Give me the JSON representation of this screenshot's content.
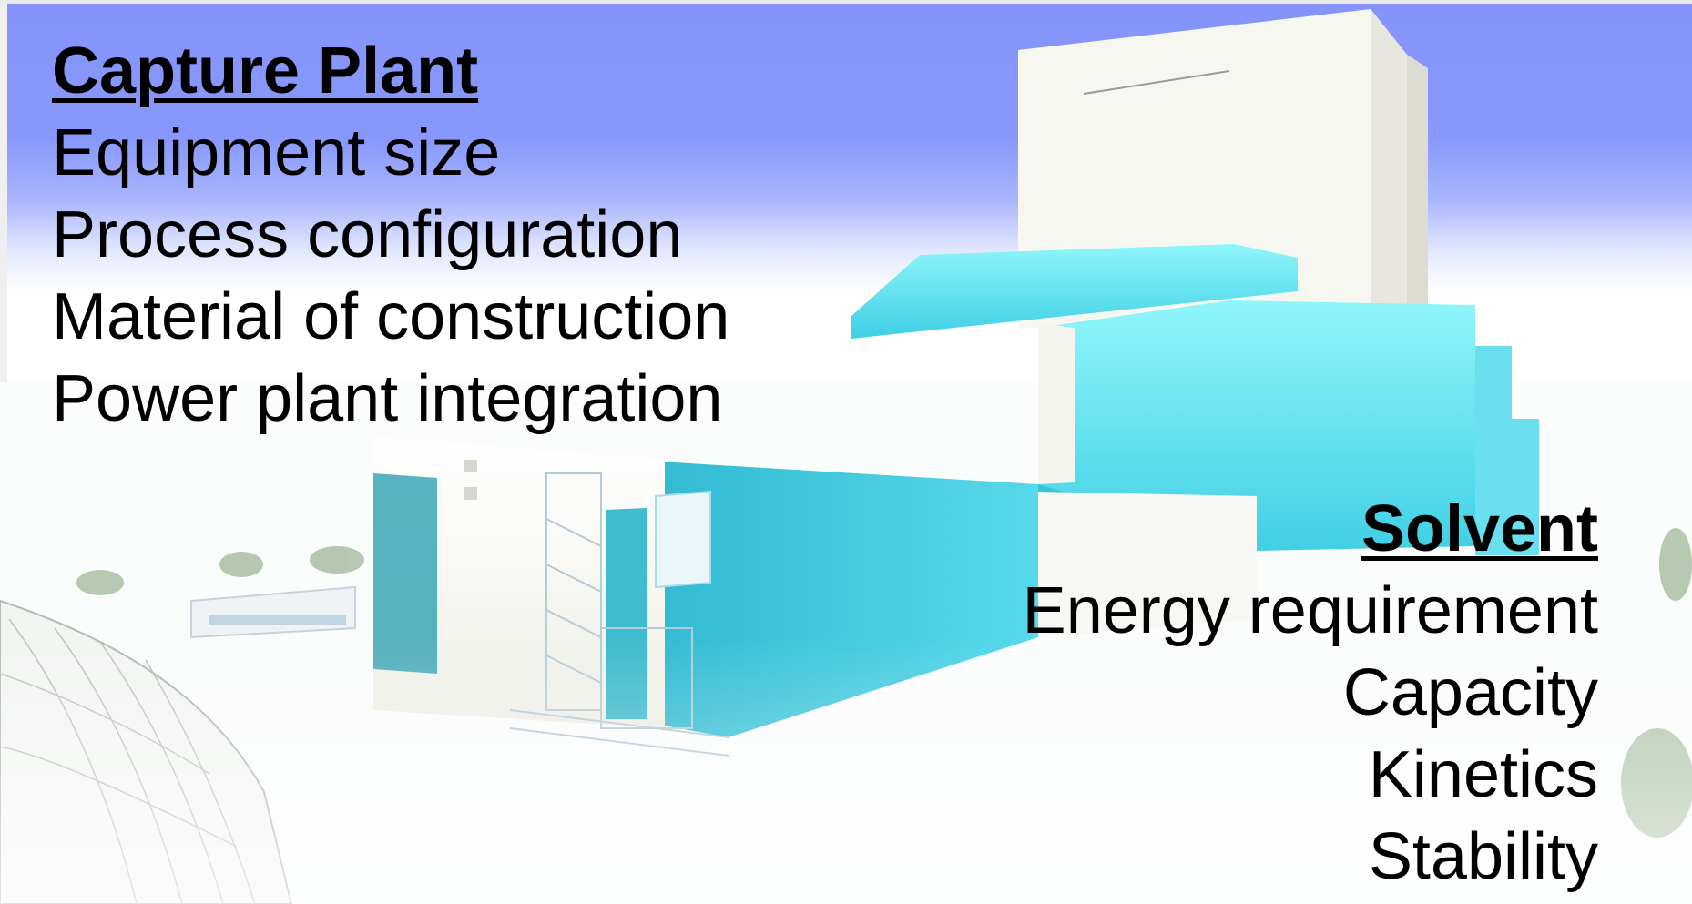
{
  "capture_plant": {
    "heading": "Capture Plant",
    "items": [
      "Equipment size",
      "Process configuration",
      "Material of construction",
      "Power plant integration"
    ]
  },
  "solvent": {
    "heading": "Solvent",
    "items": [
      "Energy requirement",
      "Capacity",
      "Kinetics",
      "Stability"
    ]
  },
  "colors": {
    "sky": "#8494fb",
    "building_cyan": "#47d6e8",
    "building_white": "#f4f4ee",
    "text": "#000000"
  }
}
